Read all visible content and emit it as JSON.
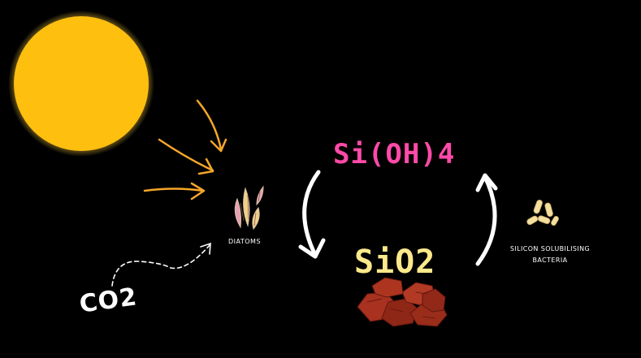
{
  "labels": {
    "sioh4": "Si(OH)4",
    "sio2": "SiO2",
    "diatoms": "DIATOMS",
    "bacteria": "SILICON SOLUBILISING BACTERIA",
    "co2": "CO2"
  },
  "colors": {
    "background": "#000000",
    "sun": "#ffbf0f",
    "sun_glow": "#ffd34a",
    "sunlight_arrows": "#f5a62a",
    "sioh4_text": "#ff4aa8",
    "sio2_text": "#fbe98b",
    "cycle_arrows": "#ffffff",
    "rock": "#a8311f",
    "bacteria": "#f3dfa0"
  },
  "icons": {
    "sun": "sun-icon",
    "diatoms": "diatom-icon",
    "bacteria": "bacteria-icon",
    "rocks": "rock-pile-icon"
  }
}
